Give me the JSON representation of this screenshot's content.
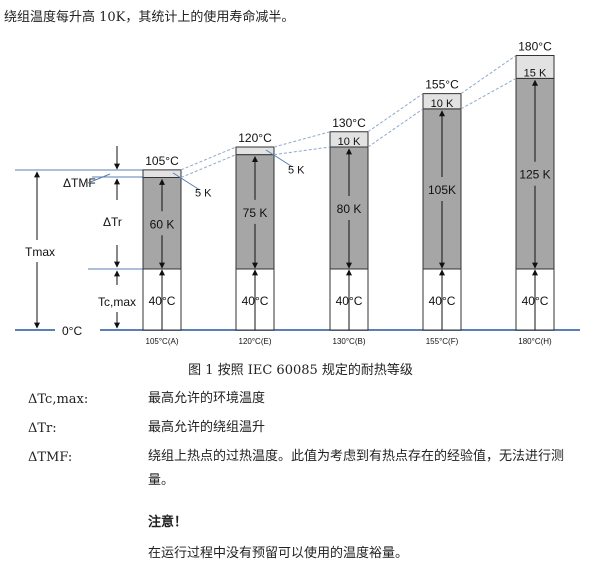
{
  "intro": "绕组温度每升高 10K，其统计上的使用寿命减半。",
  "diagram": {
    "left_labels": {
      "tmf": "ΔTMF",
      "tr": "ΔTr",
      "tmax": "Tmax",
      "tcmax": "Tc,max",
      "zero": "0°C"
    },
    "bars": [
      {
        "class": "105°C(A)",
        "top": "105°C",
        "hotspot": "5 K",
        "rise": "60 K",
        "ambient": "40°C",
        "hotspot_k": 5,
        "rise_k": 60
      },
      {
        "class": "120°C(E)",
        "top": "120°C",
        "hotspot": "5 K",
        "rise": "75 K",
        "ambient": "40°C",
        "hotspot_k": 5,
        "rise_k": 75
      },
      {
        "class": "130°C(B)",
        "top": "130°C",
        "hotspot": "10 K",
        "rise": "80 K",
        "ambient": "40°C",
        "hotspot_k": 10,
        "rise_k": 80
      },
      {
        "class": "155°C(F)",
        "top": "155°C",
        "hotspot": "10 K",
        "rise": "105K",
        "ambient": "40°C",
        "hotspot_k": 10,
        "rise_k": 105
      },
      {
        "class": "180°C(H)",
        "top": "180°C",
        "hotspot": "15 K",
        "rise": "125 K",
        "ambient": "40°C",
        "hotspot_k": 15,
        "rise_k": 125
      }
    ],
    "colors": {
      "rise": "#a6a6a6",
      "hotspot": "#e2e2e2",
      "lines": "#5b7fb5",
      "dashed": "#8fa8cc"
    }
  },
  "caption": "图 1 按照 IEC 60085 规定的耐热等级",
  "definitions": [
    {
      "term": "ΔTc,max:",
      "desc": "最高允许的环境温度"
    },
    {
      "term": "ΔTr:",
      "desc": "最高允许的绕组温升"
    },
    {
      "term": "ΔTMF:",
      "desc": "绕组上热点的过热温度。此值为考虑到有热点存在的经验值，无法进行测量。"
    }
  ],
  "note": {
    "title": "注意！",
    "text": "在运行过程中没有预留可以使用的温度裕量。"
  }
}
